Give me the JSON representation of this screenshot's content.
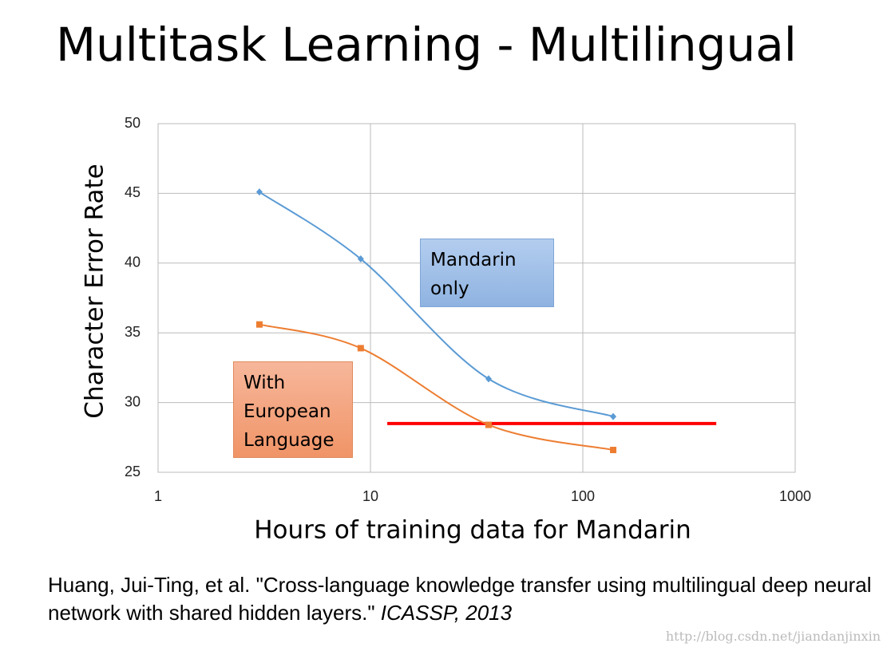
{
  "title": "Multitask Learning - Multilingual",
  "chart_data": {
    "type": "line",
    "x_label": "Hours of training data for Mandarin",
    "y_label": "Character Error Rate",
    "xlog": true,
    "grid": true,
    "xlim": [
      1,
      1000
    ],
    "xticks": [
      1,
      10,
      100,
      1000
    ],
    "ylim": [
      25,
      50
    ],
    "yticks": [
      25,
      30,
      35,
      40,
      45,
      50
    ],
    "series": [
      {
        "name": "Mandarin only",
        "color": "#5b9bd5",
        "marker": "diamond",
        "x": [
          3,
          9,
          36,
          139
        ],
        "values": [
          45.1,
          40.3,
          31.7,
          29.0
        ]
      },
      {
        "name": "With European Language",
        "color": "#ed7d31",
        "marker": "square",
        "x": [
          3,
          9,
          36,
          139
        ],
        "values": [
          35.6,
          33.9,
          28.4,
          26.6
        ]
      }
    ],
    "reference_line": {
      "color": "#ff0000",
      "x": [
        12,
        425
      ],
      "value": 28.5
    }
  },
  "citation": {
    "text": "Huang, Jui-Ting, et al. \"Cross-language knowledge transfer using multilingual deep neural network with shared hidden layers.\"",
    "venue": "ICASSP, 2013"
  },
  "watermark": "http://blog.csdn.net/jiandanjinxin"
}
